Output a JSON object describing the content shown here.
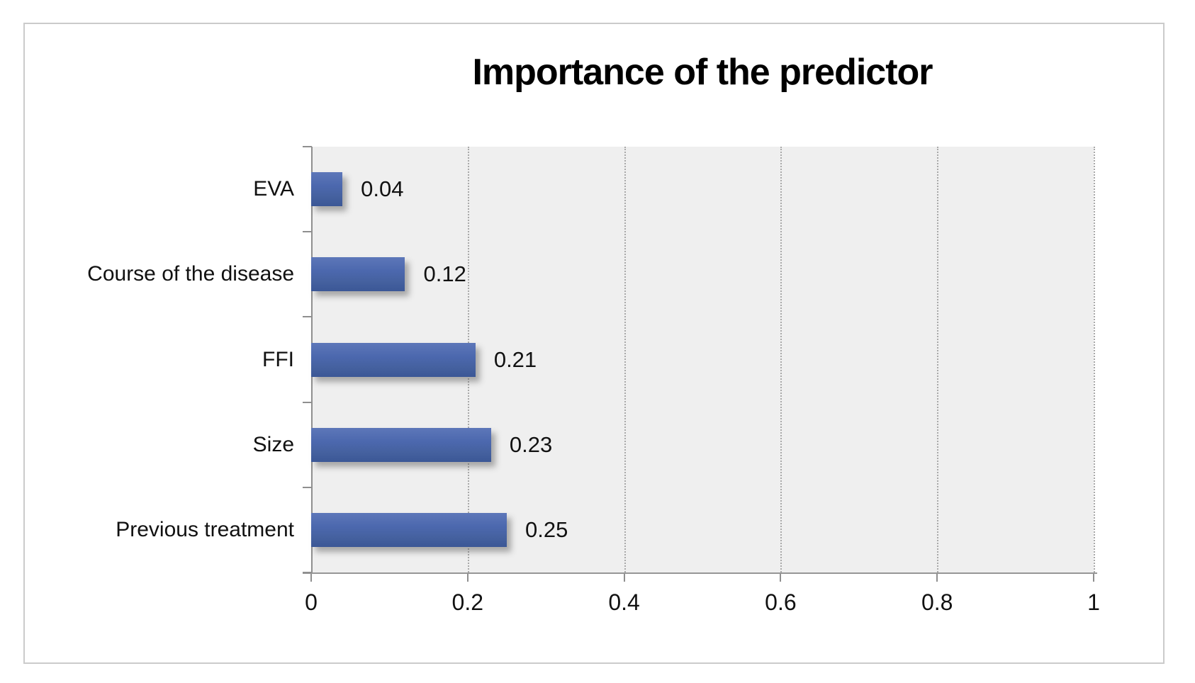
{
  "figure": {
    "background_color": "#ffffff",
    "border_color": "#cbcbcb",
    "plot_background_color": "#efefef",
    "axis_color": "#8f8f8f",
    "gridline_color": "#a9a9a9",
    "text_color": "#111111"
  },
  "chart_data": {
    "type": "bar",
    "orientation": "horizontal",
    "title": "Importance of the predictor",
    "categories": [
      "EVA",
      "Course of the disease",
      "FFI",
      "Size",
      "Previous treatment"
    ],
    "values": [
      0.04,
      0.12,
      0.21,
      0.23,
      0.25
    ],
    "data_labels": [
      "0.04",
      "0.12",
      "0.21",
      "0.23",
      "0.25"
    ],
    "xlabel": "",
    "ylabel": "",
    "xlim": [
      0,
      1
    ],
    "x_tick_values": [
      0,
      0.2,
      0.4,
      0.6,
      0.8,
      1
    ],
    "x_tick_labels": [
      "0",
      "0.2",
      "0.4",
      "0.6",
      "0.8",
      "1"
    ],
    "grid": "vertical-dotted",
    "legend_position": "none",
    "bar_color_top": "#5d77b9",
    "bar_color_bottom": "#3b5796"
  }
}
